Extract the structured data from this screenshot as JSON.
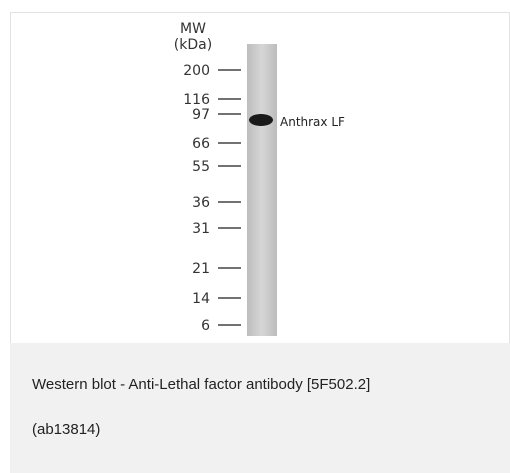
{
  "blot": {
    "mw_header": [
      "MW",
      "(kDa)"
    ],
    "markers": [
      "200",
      "116",
      "97",
      "66",
      "55",
      "36",
      "31",
      "21",
      "14",
      "6"
    ],
    "band_label": "Anthrax LF"
  },
  "caption": {
    "lines": [
      "Western blot - Anti-Lethal factor antibody [5F502.2]",
      "(ab13814)"
    ]
  }
}
